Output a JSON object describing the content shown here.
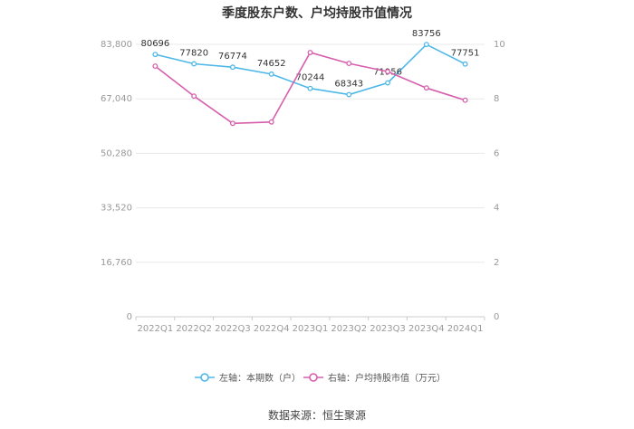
{
  "title": "季度股东户数、户均持股市值情况",
  "source": "数据来源：恒生聚源",
  "chart_data": {
    "type": "line",
    "categories": [
      "2022Q1",
      "2022Q2",
      "2022Q3",
      "2022Q4",
      "2023Q1",
      "2023Q2",
      "2023Q3",
      "2023Q4",
      "2024Q1"
    ],
    "series": [
      {
        "name": "左轴：本期数（户）",
        "axis": "left",
        "color": "#4db8e8",
        "values": [
          80696,
          77820,
          76774,
          74652,
          70244,
          68343,
          71956,
          83756,
          77751
        ],
        "labels": [
          "80696",
          "77820",
          "76774",
          "74652",
          "70244",
          "68343",
          "71956",
          "83756",
          "77751"
        ]
      },
      {
        "name": "右轴：户均持股市值（万元）",
        "axis": "right",
        "color": "#d65fad",
        "values": [
          9.2,
          8.1,
          7.1,
          7.15,
          9.7,
          9.3,
          9.0,
          8.4,
          7.95
        ]
      }
    ],
    "y_left": {
      "min": 0,
      "max": 83800,
      "ticks": [
        0,
        16760,
        33520,
        50280,
        67040,
        83800
      ],
      "tick_labels": [
        "0",
        "16,760",
        "33,520",
        "50,280",
        "67,040",
        "83,800"
      ]
    },
    "y_right": {
      "min": 0,
      "max": 10,
      "ticks": [
        0,
        2,
        4,
        6,
        8,
        10
      ],
      "tick_labels": [
        "0",
        "2",
        "4",
        "6",
        "8",
        "10"
      ]
    },
    "grid": true,
    "legend_position": "bottom"
  }
}
